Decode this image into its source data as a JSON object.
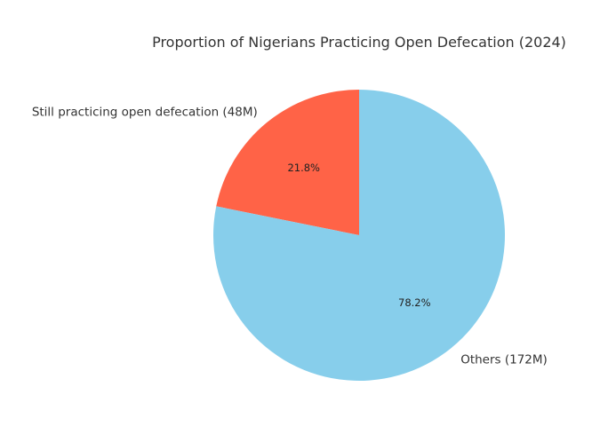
{
  "chart_data": {
    "type": "pie",
    "title": "Proportion of Nigerians Practicing Open Defecation (2024)",
    "start_angle_deg": 90,
    "direction": "counterclockwise",
    "slices": [
      {
        "label": "Still practicing open defecation (48M)",
        "value": 48,
        "percent_label": "21.8%",
        "color": "#ff6347"
      },
      {
        "label": "Others (172M)",
        "value": 172,
        "percent_label": "78.2%",
        "color": "#87ceeb"
      }
    ]
  }
}
